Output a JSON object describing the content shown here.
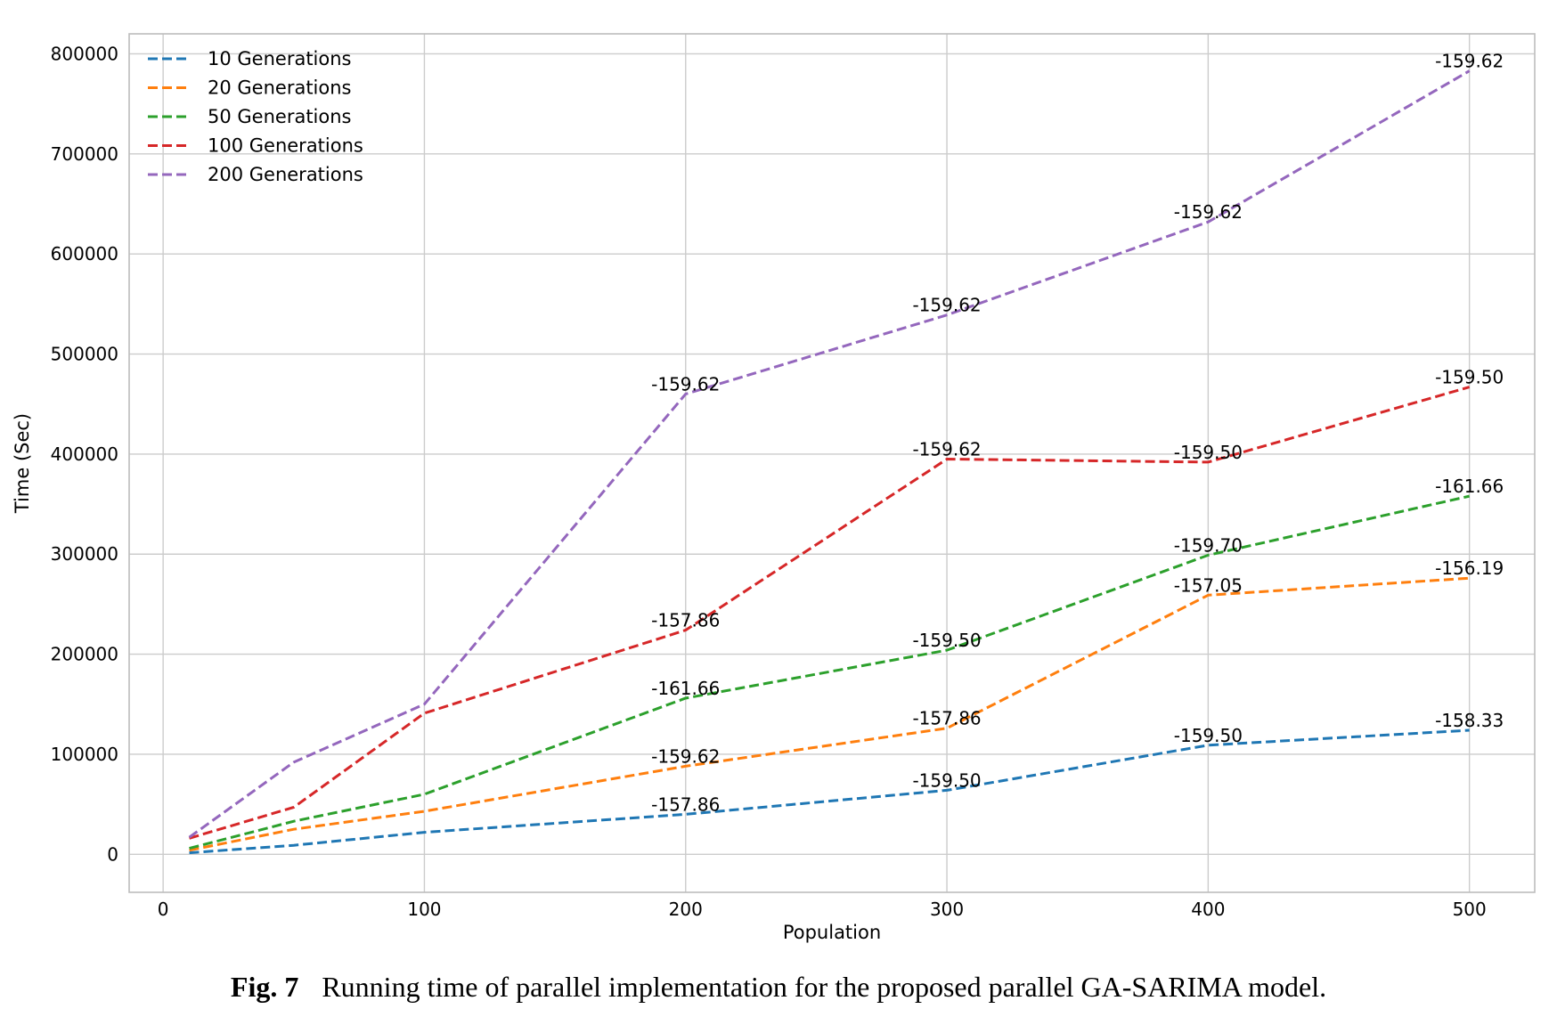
{
  "caption": {
    "label": "Fig. 7",
    "text": "Running time of parallel implementation for the proposed parallel GA-SARIMA model."
  },
  "chart_data": {
    "type": "line",
    "title": "",
    "xlabel": "Population",
    "ylabel": "Time (Sec)",
    "xlim": [
      -13,
      525
    ],
    "ylim": [
      -38000,
      820000
    ],
    "x_ticks": [
      0,
      100,
      200,
      300,
      400,
      500
    ],
    "y_ticks": [
      0,
      100000,
      200000,
      300000,
      400000,
      500000,
      600000,
      700000,
      800000
    ],
    "grid": true,
    "legend": "top-left",
    "line_style": "dashed",
    "x": [
      10,
      50,
      100,
      200,
      300,
      400,
      500
    ],
    "series": [
      {
        "name": "10 Generations",
        "color": "#1f77b4",
        "values": [
          1500,
          9000,
          22000,
          40000,
          64000,
          109000,
          124000
        ],
        "annotations": [
          {
            "x": 200,
            "y": 40000,
            "text": "-157.86"
          },
          {
            "x": 300,
            "y": 64000,
            "text": "-159.50"
          },
          {
            "x": 400,
            "y": 109000,
            "text": "-159.50"
          },
          {
            "x": 500,
            "y": 124000,
            "text": "-158.33"
          }
        ]
      },
      {
        "name": "20 Generations",
        "color": "#ff7f0e",
        "values": [
          4000,
          25000,
          43000,
          88000,
          126000,
          259000,
          276000
        ],
        "annotations": [
          {
            "x": 200,
            "y": 88000,
            "text": "-159.62"
          },
          {
            "x": 300,
            "y": 126000,
            "text": "-157.86"
          },
          {
            "x": 400,
            "y": 259000,
            "text": "-157.05"
          },
          {
            "x": 500,
            "y": 276000,
            "text": "-156.19"
          }
        ]
      },
      {
        "name": "50 Generations",
        "color": "#2ca02c",
        "values": [
          6000,
          33000,
          60000,
          156000,
          204000,
          299000,
          358000
        ],
        "annotations": [
          {
            "x": 200,
            "y": 156000,
            "text": "-161.66"
          },
          {
            "x": 300,
            "y": 204000,
            "text": "-159.50"
          },
          {
            "x": 400,
            "y": 299000,
            "text": "-159.70"
          },
          {
            "x": 500,
            "y": 358000,
            "text": "-161.66"
          }
        ]
      },
      {
        "name": "100 Generations",
        "color": "#d62728",
        "values": [
          16000,
          47000,
          141000,
          224000,
          395000,
          392000,
          467000
        ],
        "annotations": [
          {
            "x": 200,
            "y": 224000,
            "text": "-157.86"
          },
          {
            "x": 300,
            "y": 395000,
            "text": "-159.62"
          },
          {
            "x": 400,
            "y": 392000,
            "text": "-159.50"
          },
          {
            "x": 500,
            "y": 467000,
            "text": "-159.50"
          }
        ]
      },
      {
        "name": "200 Generations",
        "color": "#9467bd",
        "values": [
          17000,
          92000,
          150000,
          460000,
          539000,
          632000,
          783000
        ],
        "annotations": [
          {
            "x": 200,
            "y": 460000,
            "text": "-159.62"
          },
          {
            "x": 300,
            "y": 539000,
            "text": "-159.62"
          },
          {
            "x": 400,
            "y": 632000,
            "text": "-159.62"
          },
          {
            "x": 500,
            "y": 783000,
            "text": "-159.62"
          }
        ]
      }
    ]
  }
}
